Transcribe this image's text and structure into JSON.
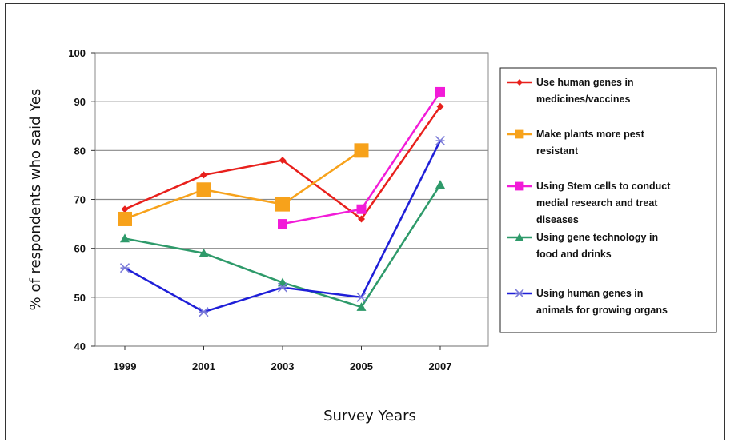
{
  "chart_data": {
    "type": "line",
    "title": "",
    "xlabel": "Survey Years",
    "ylabel": "% of respondents who said Yes",
    "ylim": [
      40,
      100
    ],
    "yticks": [
      40,
      50,
      60,
      70,
      80,
      90,
      100
    ],
    "categories": [
      "1999",
      "2001",
      "2003",
      "2005",
      "2007"
    ],
    "grid": "horizontal",
    "legend_position": "right",
    "series": [
      {
        "name_lines": [
          "Use human genes in",
          "medicines/vaccines"
        ],
        "color": "#e8201c",
        "marker": "diamond",
        "values": [
          68,
          75,
          78,
          66,
          89
        ]
      },
      {
        "name_lines": [
          "Make plants more pest",
          "resistant"
        ],
        "color": "#f7a21b",
        "marker": "square",
        "values": [
          66,
          72,
          69,
          80,
          null
        ]
      },
      {
        "name_lines": [
          "Using Stem cells to conduct",
          "medial research and treat",
          "diseases"
        ],
        "color": "#f21bd8",
        "marker": "square-small",
        "values": [
          null,
          null,
          65,
          68,
          92
        ]
      },
      {
        "name_lines": [
          "Using gene technology in",
          "food and drinks"
        ],
        "color": "#2e9a6a",
        "marker": "triangle",
        "values": [
          62,
          59,
          53,
          48,
          73
        ]
      },
      {
        "name_lines": [
          "Using human genes in",
          "animals for growing organs"
        ],
        "color": "#1f1fd8",
        "marker": "asterisk",
        "values": [
          56,
          47,
          52,
          50,
          82
        ]
      }
    ]
  }
}
